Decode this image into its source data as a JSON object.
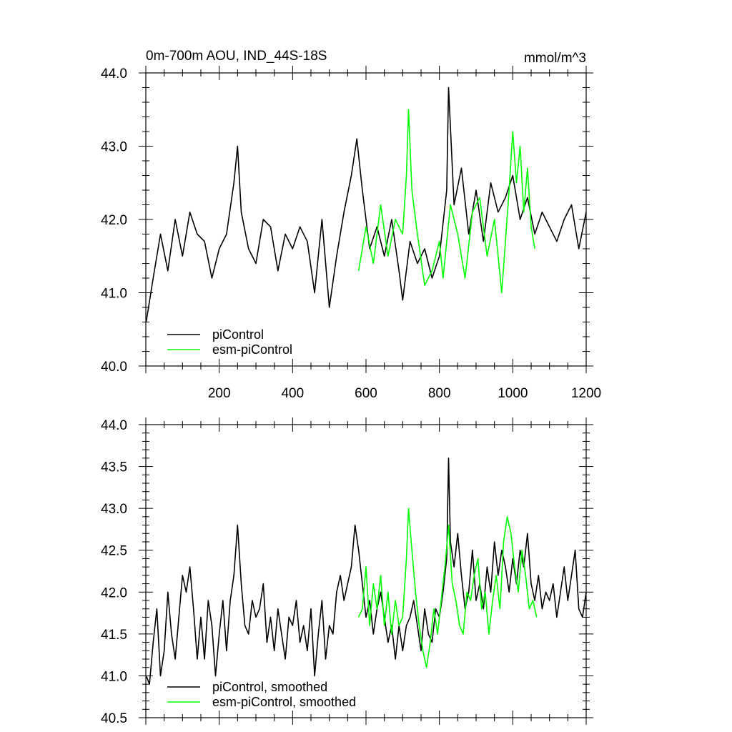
{
  "chart_data": [
    {
      "type": "line",
      "title": "0m-700m AOU, IND_44S-18S",
      "units": "mmol/m^3",
      "xlim": [
        1,
        1200
      ],
      "ylim": [
        40.0,
        44.0
      ],
      "x_ticks": [
        200,
        400,
        600,
        800,
        1000,
        1200
      ],
      "x_tick_labels": [
        "200",
        "400",
        "600",
        "800",
        "1000",
        "1200"
      ],
      "y_ticks": [
        40.0,
        41.0,
        42.0,
        43.0,
        44.0
      ],
      "y_tick_labels": [
        "40.0",
        "41.0",
        "42.0",
        "43.0",
        "44.0"
      ],
      "legend_position": "bottom-left",
      "series": [
        {
          "name": "piControl",
          "color": "#000000",
          "x": [
            1,
            20,
            40,
            60,
            80,
            100,
            120,
            140,
            160,
            180,
            200,
            220,
            240,
            250,
            260,
            280,
            300,
            320,
            340,
            360,
            380,
            400,
            420,
            440,
            460,
            480,
            500,
            520,
            540,
            560,
            575,
            590,
            610,
            630,
            650,
            670,
            690,
            700,
            720,
            740,
            760,
            780,
            800,
            820,
            825,
            840,
            860,
            880,
            900,
            920,
            940,
            960,
            980,
            1000,
            1020,
            1040,
            1060,
            1080,
            1100,
            1120,
            1140,
            1160,
            1180,
            1200
          ],
          "values": [
            40.6,
            41.2,
            41.8,
            41.3,
            42.0,
            41.5,
            42.1,
            41.8,
            41.7,
            41.2,
            41.6,
            41.8,
            42.5,
            43.0,
            42.1,
            41.6,
            41.4,
            42.0,
            41.9,
            41.3,
            41.8,
            41.6,
            41.9,
            41.7,
            41.0,
            42.0,
            40.8,
            41.5,
            42.1,
            42.6,
            43.1,
            42.4,
            41.6,
            41.9,
            41.5,
            42.0,
            41.3,
            40.9,
            41.7,
            41.4,
            41.6,
            41.2,
            41.5,
            42.4,
            43.8,
            42.2,
            42.7,
            41.8,
            42.4,
            41.7,
            42.5,
            42.1,
            42.3,
            42.6,
            42.0,
            42.3,
            41.8,
            42.1,
            41.9,
            41.7,
            42.0,
            42.2,
            41.6,
            42.1
          ]
        },
        {
          "name": "esm-piControl",
          "color": "#00ff00",
          "x": [
            580,
            590,
            600,
            620,
            640,
            660,
            680,
            700,
            710,
            716,
            725,
            740,
            760,
            780,
            800,
            810,
            830,
            850,
            870,
            890,
            910,
            930,
            950,
            970,
            990,
            1000,
            1010,
            1020,
            1030,
            1040,
            1050,
            1060
          ],
          "values": [
            41.3,
            41.6,
            41.9,
            41.4,
            42.2,
            41.5,
            42.0,
            41.8,
            42.6,
            43.5,
            42.4,
            41.8,
            41.1,
            41.3,
            41.7,
            41.2,
            42.2,
            41.8,
            41.2,
            42.1,
            42.3,
            41.5,
            42.0,
            41.0,
            42.4,
            43.2,
            42.5,
            43.0,
            42.1,
            42.7,
            41.9,
            41.6
          ]
        }
      ]
    },
    {
      "type": "line",
      "xlim": [
        1,
        1200
      ],
      "ylim": [
        40.5,
        44.0
      ],
      "y_ticks": [
        40.5,
        41.0,
        41.5,
        42.0,
        42.5,
        43.0,
        43.5,
        44.0
      ],
      "y_tick_labels": [
        "40.5",
        "41.0",
        "41.5",
        "42.0",
        "42.5",
        "43.0",
        "43.5",
        "44.0"
      ],
      "legend_position": "bottom-left",
      "series": [
        {
          "name": "piControl, smoothed",
          "color": "#000000",
          "x": [
            1,
            10,
            20,
            30,
            40,
            50,
            60,
            70,
            80,
            100,
            110,
            120,
            130,
            140,
            150,
            160,
            170,
            180,
            190,
            200,
            210,
            220,
            230,
            240,
            250,
            260,
            270,
            280,
            290,
            300,
            310,
            320,
            330,
            340,
            350,
            360,
            370,
            380,
            390,
            400,
            410,
            420,
            430,
            440,
            450,
            460,
            470,
            480,
            490,
            500,
            510,
            520,
            530,
            540,
            550,
            560,
            570,
            580,
            590,
            600,
            610,
            620,
            630,
            640,
            650,
            660,
            670,
            680,
            690,
            700,
            710,
            720,
            730,
            740,
            750,
            760,
            770,
            780,
            790,
            800,
            810,
            820,
            825,
            830,
            840,
            850,
            860,
            870,
            880,
            890,
            900,
            910,
            920,
            930,
            940,
            950,
            960,
            970,
            980,
            990,
            1000,
            1010,
            1020,
            1030,
            1040,
            1050,
            1060,
            1070,
            1080,
            1090,
            1100,
            1110,
            1120,
            1130,
            1140,
            1150,
            1160,
            1170,
            1180,
            1190,
            1200
          ],
          "values": [
            41.0,
            40.9,
            41.4,
            41.8,
            41.0,
            41.3,
            42.0,
            41.5,
            41.2,
            42.2,
            42.0,
            42.3,
            41.8,
            41.2,
            41.7,
            41.2,
            41.9,
            41.6,
            41.0,
            41.5,
            41.9,
            41.3,
            41.9,
            42.2,
            42.8,
            42.1,
            41.6,
            41.5,
            41.9,
            41.7,
            41.8,
            42.1,
            41.4,
            41.7,
            41.3,
            41.8,
            41.5,
            41.2,
            41.7,
            41.6,
            41.9,
            41.4,
            41.6,
            41.3,
            41.8,
            41.0,
            41.5,
            41.9,
            41.2,
            41.6,
            41.5,
            42.0,
            42.2,
            41.9,
            42.1,
            42.3,
            42.8,
            42.5,
            42.1,
            41.7,
            41.9,
            41.5,
            41.8,
            42.0,
            41.7,
            41.4,
            41.6,
            41.2,
            41.6,
            41.3,
            41.6,
            41.7,
            41.9,
            41.6,
            41.3,
            41.8,
            41.5,
            41.4,
            41.8,
            41.7,
            42.0,
            42.4,
            43.6,
            42.6,
            42.3,
            42.7,
            42.2,
            41.8,
            42.0,
            42.5,
            41.9,
            42.1,
            41.8,
            42.3,
            42.0,
            42.6,
            42.2,
            42.5,
            42.3,
            42.0,
            42.4,
            42.1,
            42.5,
            42.3,
            42.7,
            42.1,
            41.9,
            42.2,
            41.8,
            42.0,
            41.9,
            42.1,
            41.7,
            42.0,
            42.3,
            41.9,
            42.2,
            42.5,
            41.8,
            41.7,
            42.0
          ]
        },
        {
          "name": "esm-piControl, smoothed",
          "color": "#00ff00",
          "x": [
            580,
            590,
            600,
            610,
            620,
            630,
            640,
            650,
            660,
            670,
            680,
            690,
            700,
            710,
            716,
            725,
            735,
            745,
            755,
            765,
            775,
            785,
            795,
            805,
            815,
            825,
            835,
            845,
            855,
            865,
            875,
            885,
            895,
            905,
            915,
            925,
            935,
            945,
            955,
            965,
            975,
            985,
            995,
            1005,
            1015,
            1025,
            1035,
            1045,
            1055,
            1065
          ],
          "values": [
            41.7,
            41.8,
            42.3,
            41.6,
            42.1,
            41.8,
            42.2,
            41.6,
            42.0,
            41.5,
            41.9,
            41.6,
            41.7,
            42.4,
            43.0,
            42.5,
            42.0,
            41.6,
            41.3,
            41.1,
            41.4,
            41.8,
            41.5,
            41.9,
            42.3,
            42.8,
            42.1,
            41.9,
            41.6,
            41.5,
            42.0,
            41.9,
            42.2,
            42.4,
            41.8,
            42.0,
            41.5,
            41.9,
            42.2,
            41.8,
            42.6,
            42.9,
            42.7,
            42.3,
            42.0,
            42.5,
            42.2,
            41.8,
            41.9,
            41.7
          ]
        }
      ]
    }
  ]
}
